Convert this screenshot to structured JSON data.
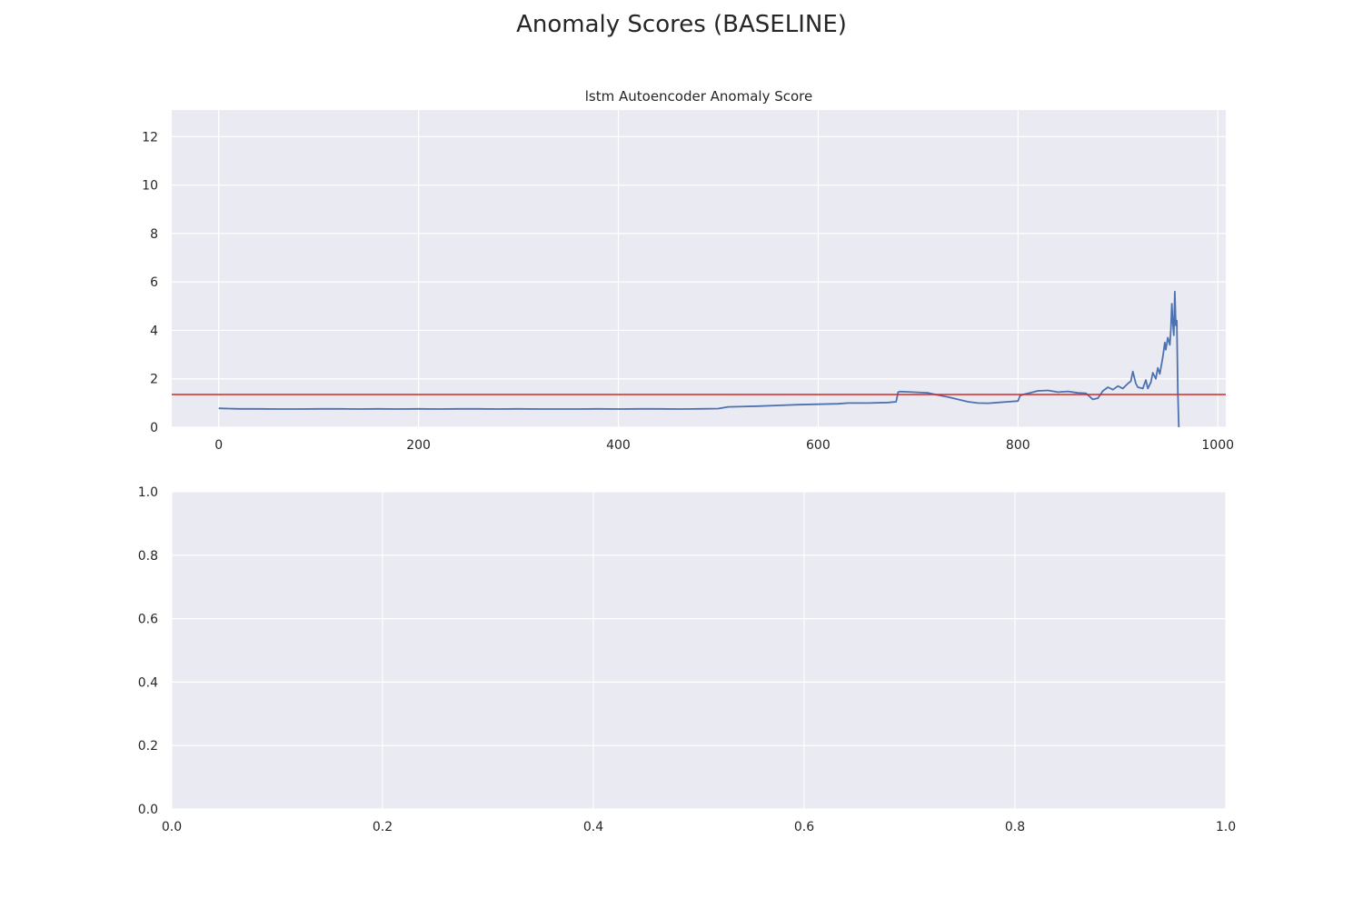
{
  "figure": {
    "title": "Anomaly Scores (BASELINE)",
    "background": "#ffffff"
  },
  "chart_data": [
    {
      "type": "line",
      "title": "lstm Autoencoder Anomaly Score",
      "xlabel": "",
      "ylabel": "",
      "xlim": [
        -47,
        1008
      ],
      "ylim": [
        0,
        13.1
      ],
      "xticks": [
        0,
        200,
        400,
        600,
        800,
        1000
      ],
      "xtick_labels": [
        "0",
        "200",
        "400",
        "600",
        "800",
        "1000"
      ],
      "yticks": [
        0,
        2,
        4,
        6,
        8,
        10,
        12
      ],
      "ytick_labels": [
        "0",
        "2",
        "4",
        "6",
        "8",
        "10",
        "12"
      ],
      "grid": true,
      "facecolor": "#eaeaf2",
      "grid_color": "#ffffff",
      "series": [
        {
          "color": "#4c72b0",
          "x": [
            0,
            20,
            40,
            60,
            80,
            100,
            120,
            140,
            160,
            180,
            200,
            220,
            240,
            260,
            280,
            300,
            320,
            340,
            360,
            380,
            400,
            420,
            440,
            460,
            480,
            500,
            510,
            520,
            540,
            560,
            580,
            600,
            620,
            630,
            650,
            670,
            678,
            680,
            682,
            690,
            700,
            710,
            720,
            730,
            740,
            750,
            760,
            770,
            780,
            790,
            800,
            802,
            805,
            810,
            820,
            830,
            840,
            850,
            860,
            868,
            875,
            880,
            885,
            890,
            895,
            900,
            905,
            910,
            913,
            915,
            918,
            920,
            925,
            928,
            930,
            933,
            935,
            938,
            940,
            942,
            945,
            947,
            948,
            950,
            952,
            953,
            954,
            955,
            956,
            957,
            958,
            959,
            960,
            961
          ],
          "values": [
            0.78,
            0.76,
            0.76,
            0.75,
            0.75,
            0.76,
            0.76,
            0.75,
            0.76,
            0.75,
            0.76,
            0.75,
            0.76,
            0.76,
            0.75,
            0.76,
            0.75,
            0.75,
            0.75,
            0.76,
            0.75,
            0.76,
            0.76,
            0.75,
            0.76,
            0.77,
            0.84,
            0.85,
            0.87,
            0.9,
            0.93,
            0.95,
            0.97,
            1.0,
            1.0,
            1.02,
            1.05,
            1.45,
            1.47,
            1.46,
            1.44,
            1.42,
            1.33,
            1.25,
            1.15,
            1.05,
            1.0,
            0.99,
            1.02,
            1.05,
            1.08,
            1.3,
            1.35,
            1.4,
            1.5,
            1.52,
            1.45,
            1.48,
            1.42,
            1.4,
            1.15,
            1.2,
            1.5,
            1.65,
            1.55,
            1.7,
            1.6,
            1.8,
            1.9,
            2.3,
            1.8,
            1.65,
            1.6,
            1.95,
            1.6,
            1.85,
            2.25,
            2.0,
            2.45,
            2.2,
            2.9,
            3.5,
            3.2,
            3.7,
            3.4,
            4.0,
            5.1,
            4.3,
            3.8,
            5.6,
            4.2,
            4.4,
            1.5,
            0.0
          ]
        }
      ],
      "hlines": [
        {
          "y": 1.35,
          "color": "#d62728"
        }
      ]
    },
    {
      "type": "line",
      "title": "",
      "xlabel": "",
      "ylabel": "",
      "xlim": [
        0,
        1
      ],
      "ylim": [
        0,
        1
      ],
      "xticks": [
        0,
        0.2,
        0.4,
        0.6,
        0.8,
        1.0
      ],
      "xtick_labels": [
        "0.0",
        "0.2",
        "0.4",
        "0.6",
        "0.8",
        "1.0"
      ],
      "yticks": [
        0,
        0.2,
        0.4,
        0.6,
        0.8,
        1.0
      ],
      "ytick_labels": [
        "0.0",
        "0.2",
        "0.4",
        "0.6",
        "0.8",
        "1.0"
      ],
      "grid": true,
      "facecolor": "#eaeaf2",
      "grid_color": "#ffffff",
      "series": []
    }
  ]
}
